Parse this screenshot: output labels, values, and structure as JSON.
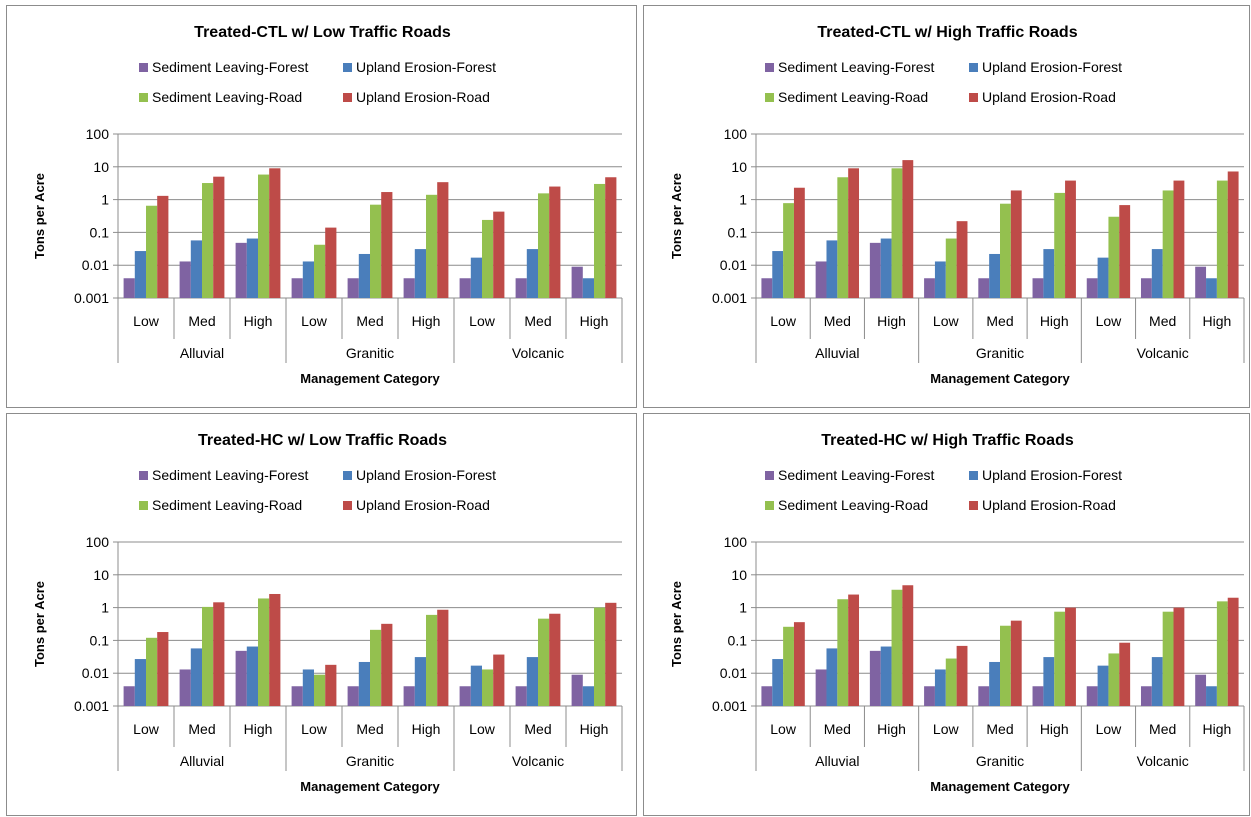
{
  "colors": {
    "sediment_forest": "#7f63a2",
    "upland_forest": "#4a7ebb",
    "sediment_road": "#94c04f",
    "upland_road": "#be4b48",
    "gridline": "#8c8c8c",
    "axis": "#8c8c8c"
  },
  "chart_data": [
    {
      "type": "bar",
      "title": "Treated-CTL w/ Low Traffic Roads",
      "xlabel": "Management Category",
      "ylabel": "Tons per Acre",
      "yscale": "log",
      "ylim": [
        0.001,
        100
      ],
      "yticks": [
        "100",
        "10",
        "1",
        "0.1",
        "0.01",
        "0.001"
      ],
      "grid": true,
      "legend": "top",
      "groups": [
        "Alluvial",
        "Granitic",
        "Volcanic"
      ],
      "categories": [
        "Low",
        "Med",
        "High",
        "Low",
        "Med",
        "High",
        "Low",
        "Med",
        "High"
      ],
      "series": [
        {
          "name": "Sediment Leaving-Forest",
          "values": [
            0.004,
            0.013,
            0.048,
            0.004,
            0.004,
            0.004,
            0.004,
            0.004,
            0.009
          ]
        },
        {
          "name": "Upland Erosion-Forest",
          "values": [
            0.027,
            0.057,
            0.065,
            0.013,
            0.022,
            0.031,
            0.017,
            0.031,
            0.004
          ]
        },
        {
          "name": "Sediment Leaving-Road",
          "values": [
            0.65,
            3.2,
            5.8,
            0.042,
            0.7,
            1.4,
            0.24,
            1.55,
            3.0
          ]
        },
        {
          "name": "Upland Erosion-Road",
          "values": [
            1.3,
            5.0,
            9.0,
            0.14,
            1.7,
            3.4,
            0.43,
            2.5,
            4.8
          ]
        }
      ]
    },
    {
      "type": "bar",
      "title": "Treated-CTL w/ High Traffic Roads",
      "xlabel": "Management Category",
      "ylabel": "Tons per Acre",
      "yscale": "log",
      "ylim": [
        0.001,
        100
      ],
      "yticks": [
        "100",
        "10",
        "1",
        "0.1",
        "0.01",
        "0.001"
      ],
      "grid": true,
      "legend": "top",
      "groups": [
        "Alluvial",
        "Granitic",
        "Volcanic"
      ],
      "categories": [
        "Low",
        "Med",
        "High",
        "Low",
        "Med",
        "High",
        "Low",
        "Med",
        "High"
      ],
      "series": [
        {
          "name": "Sediment Leaving-Forest",
          "values": [
            0.004,
            0.013,
            0.048,
            0.004,
            0.004,
            0.004,
            0.004,
            0.004,
            0.009
          ]
        },
        {
          "name": "Upland Erosion-Forest",
          "values": [
            0.027,
            0.057,
            0.065,
            0.013,
            0.022,
            0.031,
            0.017,
            0.031,
            0.004
          ]
        },
        {
          "name": "Sediment Leaving-Road",
          "values": [
            0.78,
            4.8,
            9.0,
            0.065,
            0.75,
            1.6,
            0.3,
            1.9,
            3.8
          ]
        },
        {
          "name": "Upland Erosion-Road",
          "values": [
            2.3,
            9.0,
            16.0,
            0.22,
            1.9,
            3.8,
            0.68,
            3.8,
            7.2
          ]
        }
      ]
    },
    {
      "type": "bar",
      "title": "Treated-HC w/ Low Traffic Roads",
      "xlabel": "Management Category",
      "ylabel": "Tons per Acre",
      "yscale": "log",
      "ylim": [
        0.001,
        100
      ],
      "yticks": [
        "100",
        "10",
        "1",
        "0.1",
        "0.01",
        "0.001"
      ],
      "grid": true,
      "legend": "top",
      "groups": [
        "Alluvial",
        "Granitic",
        "Volcanic"
      ],
      "categories": [
        "Low",
        "Med",
        "High",
        "Low",
        "Med",
        "High",
        "Low",
        "Med",
        "High"
      ],
      "series": [
        {
          "name": "Sediment Leaving-Forest",
          "values": [
            0.004,
            0.013,
            0.048,
            0.004,
            0.004,
            0.004,
            0.004,
            0.004,
            0.009
          ]
        },
        {
          "name": "Upland Erosion-Forest",
          "values": [
            0.027,
            0.057,
            0.065,
            0.013,
            0.022,
            0.031,
            0.017,
            0.031,
            0.004
          ]
        },
        {
          "name": "Sediment Leaving-Road",
          "values": [
            0.12,
            1.05,
            1.9,
            0.009,
            0.21,
            0.6,
            0.013,
            0.46,
            1.0
          ]
        },
        {
          "name": "Upland Erosion-Road",
          "values": [
            0.18,
            1.45,
            2.6,
            0.018,
            0.32,
            0.86,
            0.037,
            0.65,
            1.4
          ]
        }
      ]
    },
    {
      "type": "bar",
      "title": "Treated-HC w/ High Traffic Roads",
      "xlabel": "Management Category",
      "ylabel": "Tons per Acre",
      "yscale": "log",
      "ylim": [
        0.001,
        100
      ],
      "yticks": [
        "100",
        "10",
        "1",
        "0.1",
        "0.01",
        "0.001"
      ],
      "grid": true,
      "legend": "top",
      "groups": [
        "Alluvial",
        "Granitic",
        "Volcanic"
      ],
      "categories": [
        "Low",
        "Med",
        "High",
        "Low",
        "Med",
        "High",
        "Low",
        "Med",
        "High"
      ],
      "series": [
        {
          "name": "Sediment Leaving-Forest",
          "values": [
            0.004,
            0.013,
            0.048,
            0.004,
            0.004,
            0.004,
            0.004,
            0.004,
            0.009
          ]
        },
        {
          "name": "Upland Erosion-Forest",
          "values": [
            0.027,
            0.057,
            0.065,
            0.013,
            0.022,
            0.031,
            0.017,
            0.031,
            0.004
          ]
        },
        {
          "name": "Sediment Leaving-Road",
          "values": [
            0.26,
            1.8,
            3.5,
            0.028,
            0.28,
            0.75,
            0.04,
            0.75,
            1.55
          ]
        },
        {
          "name": "Upland Erosion-Road",
          "values": [
            0.36,
            2.5,
            4.8,
            0.068,
            0.4,
            1.0,
            0.085,
            1.0,
            2.0
          ]
        }
      ]
    }
  ]
}
